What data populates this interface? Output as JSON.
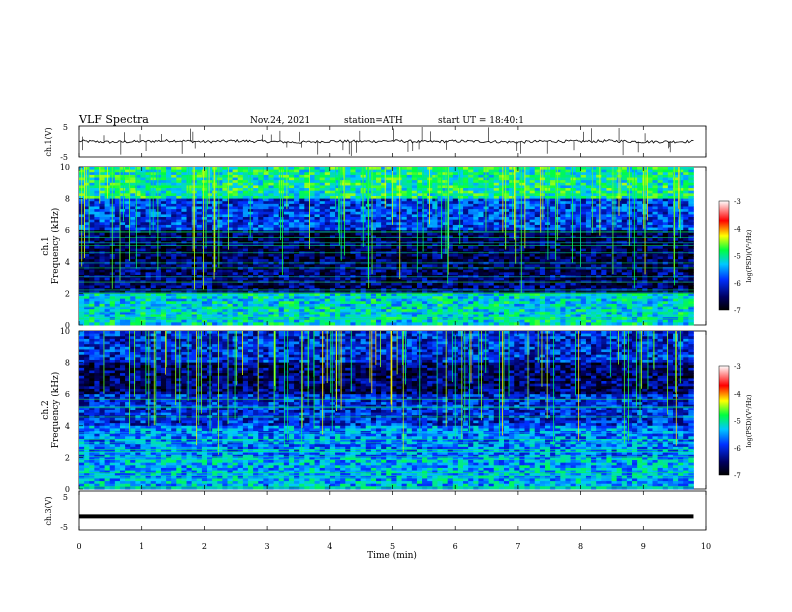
{
  "header": {
    "title": "VLF  Spectra",
    "date": "Nov.24, 2021",
    "station": "station=ATH",
    "start": "start  UT  =   18:40:1"
  },
  "colors": {
    "background": "#ffffff",
    "spectrogram_dark": "#000033",
    "trace": "#000000"
  },
  "chart_data": [
    {
      "type": "line",
      "panel": "ch1-waveform",
      "ylabel": "ch.1(V)",
      "ylim": [
        -5,
        5
      ],
      "y_ticks": [
        "5",
        "-5"
      ],
      "x": [
        0,
        0.5,
        1,
        1.5,
        2,
        2.5,
        3,
        3.5,
        4,
        4.5,
        5,
        5.5,
        6,
        6.5,
        7,
        7.5,
        8,
        8.5,
        9,
        9.8
      ],
      "series": [
        {
          "values": [
            0.1,
            -0.2,
            0.0,
            0.3,
            -0.1,
            0.2,
            0.0,
            -0.3,
            0.1,
            0.0,
            0.2,
            -0.1,
            0.1,
            0.0,
            -0.2,
            0.1,
            0.0,
            0.2,
            -0.1,
            0.0
          ]
        }
      ]
    },
    {
      "type": "heatmap",
      "panel": "ch1-spectrogram",
      "ylabel_top": "ch.1",
      "ylabel": "Frequency  (kHz)",
      "ylim": [
        0,
        10
      ],
      "y_ticks": [
        "0",
        "2",
        "4",
        "6",
        "8",
        "10"
      ],
      "xlim": [
        0,
        9.8
      ],
      "zlim": [
        -7,
        -3
      ],
      "colorbar_label": "log(PSD)(V²/Hz)",
      "colorbar_ticks": [
        "-3",
        "-4",
        "-5",
        "-6",
        "-7"
      ],
      "mean_log_psd_by_band": [
        {
          "f_khz": [
            0,
            2
          ],
          "level": -5.2
        },
        {
          "f_khz": [
            2,
            4
          ],
          "level": -6.5
        },
        {
          "f_khz": [
            4,
            6
          ],
          "level": -6.6
        },
        {
          "f_khz": [
            6,
            8
          ],
          "level": -5.9
        },
        {
          "f_khz": [
            8,
            10
          ],
          "level": -5.0
        }
      ]
    },
    {
      "type": "heatmap",
      "panel": "ch2-spectrogram",
      "ylabel_top": "ch.2",
      "ylabel": "Frequency  (kHz)",
      "ylim": [
        0,
        10
      ],
      "y_ticks": [
        "0",
        "2",
        "4",
        "6",
        "8",
        "10"
      ],
      "xlim": [
        0,
        9.8
      ],
      "zlim": [
        -7,
        -3
      ],
      "colorbar_label": "log(PSD)(V²/Hz)",
      "colorbar_ticks": [
        "-3",
        "-4",
        "-5",
        "-6",
        "-7"
      ],
      "mean_log_psd_by_band": [
        {
          "f_khz": [
            0,
            2
          ],
          "level": -5.4
        },
        {
          "f_khz": [
            2,
            4
          ],
          "level": -5.6
        },
        {
          "f_khz": [
            4,
            6
          ],
          "level": -6.0
        },
        {
          "f_khz": [
            6,
            8
          ],
          "level": -6.5
        },
        {
          "f_khz": [
            8,
            10
          ],
          "level": -6.0
        }
      ]
    },
    {
      "type": "line",
      "panel": "ch3-waveform",
      "ylabel": "ch.3(V)",
      "ylim": [
        -5,
        5
      ],
      "y_ticks": [
        "5",
        "-5"
      ],
      "x": [
        0,
        9.8
      ],
      "series": [
        {
          "values": [
            -1.5,
            -1.5
          ]
        }
      ]
    }
  ],
  "x_axis": {
    "label": "Time  (min)",
    "ticks": [
      "0",
      "1",
      "2",
      "3",
      "4",
      "5",
      "6",
      "7",
      "8",
      "9",
      "10"
    ],
    "range": [
      0,
      10
    ]
  }
}
